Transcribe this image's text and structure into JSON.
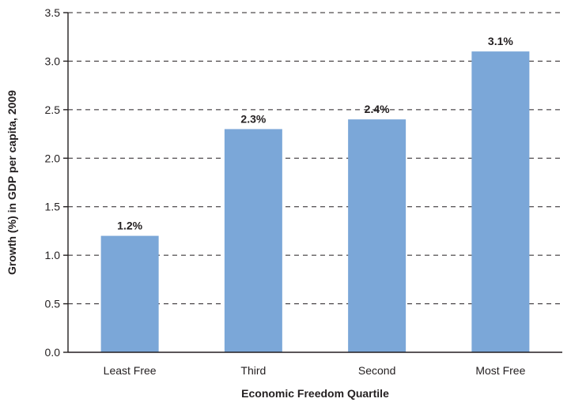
{
  "chart_data": {
    "type": "bar",
    "categories": [
      "Least Free",
      "Third",
      "Second",
      "Most Free"
    ],
    "values": [
      1.2,
      2.3,
      2.4,
      3.1
    ],
    "value_labels": [
      "1.2%",
      "2.3%",
      "2.4%",
      "3.1%"
    ],
    "xlabel": "Economic Freedom Quartile",
    "ylabel": "Growth (%) in GDP per capita, 2009",
    "ylim": [
      0,
      3.5
    ],
    "yticks": [
      "0.0",
      "0.5",
      "1.0",
      "1.5",
      "2.0",
      "2.5",
      "3.0",
      "3.5"
    ],
    "grid": true,
    "bar_color": "#7ba7d8"
  }
}
